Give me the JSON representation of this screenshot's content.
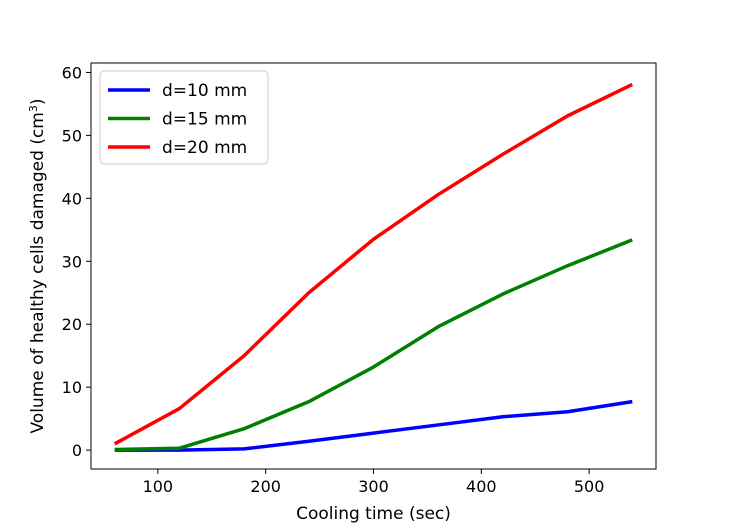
{
  "chart_data": {
    "type": "line",
    "title": "",
    "xlabel": "Cooling time (sec)",
    "ylabel": "Volume of healthy cells damaged (cm",
    "ylabel_superscript": "3",
    "ylabel_suffix": ")",
    "xlim": [
      38,
      562
    ],
    "ylim": [
      -3,
      61.5
    ],
    "xticks": [
      100,
      200,
      300,
      400,
      500
    ],
    "yticks": [
      0,
      10,
      20,
      30,
      40,
      50,
      60
    ],
    "grid": false,
    "legend_position": "top-left",
    "x": [
      60,
      120,
      180,
      240,
      300,
      360,
      420,
      480,
      540
    ],
    "series": [
      {
        "name": "d=10 mm",
        "color": "#0000ff",
        "values": [
          0.0,
          0.0,
          0.2,
          1.4,
          2.7,
          4.0,
          5.3,
          6.1,
          7.7
        ]
      },
      {
        "name": "d=15 mm",
        "color": "#008000",
        "values": [
          0.1,
          0.3,
          3.4,
          7.7,
          13.2,
          19.6,
          24.8,
          29.3,
          33.4
        ]
      },
      {
        "name": "d=20 mm",
        "color": "#ff0000",
        "values": [
          1.0,
          6.6,
          15.0,
          25.0,
          33.5,
          40.6,
          47.0,
          53.1,
          58.1
        ]
      }
    ]
  }
}
